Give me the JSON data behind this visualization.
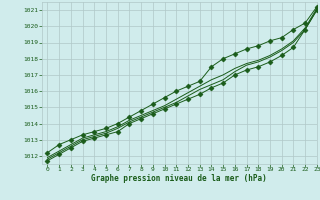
{
  "bg_color": "#d0ecec",
  "grid_color": "#b0c8c8",
  "line_color": "#1a5c1a",
  "marker_color": "#1a5c1a",
  "xlabel": "Graphe pression niveau de la mer (hPa)",
  "xlabel_color": "#1a5c1a",
  "ylabel_color": "#1a5c1a",
  "xlim": [
    -0.5,
    23
  ],
  "ylim": [
    1011.5,
    1021.5
  ],
  "yticks": [
    1012,
    1013,
    1014,
    1015,
    1016,
    1017,
    1018,
    1019,
    1020,
    1021
  ],
  "xticks": [
    0,
    1,
    2,
    3,
    4,
    5,
    6,
    7,
    8,
    9,
    10,
    11,
    12,
    13,
    14,
    15,
    16,
    17,
    18,
    19,
    20,
    21,
    22,
    23
  ],
  "series": [
    [
      1011.7,
      1012.1,
      1012.5,
      1012.9,
      1013.1,
      1013.3,
      1013.5,
      1014.0,
      1014.3,
      1014.6,
      1014.9,
      1015.2,
      1015.5,
      1015.8,
      1016.2,
      1016.5,
      1017.0,
      1017.3,
      1017.5,
      1017.8,
      1018.2,
      1018.7,
      1019.8,
      1021.0
    ],
    [
      1011.8,
      1012.2,
      1012.6,
      1013.0,
      1013.2,
      1013.4,
      1013.7,
      1014.1,
      1014.4,
      1014.7,
      1015.0,
      1015.3,
      1015.7,
      1016.1,
      1016.4,
      1016.7,
      1017.2,
      1017.6,
      1017.8,
      1018.1,
      1018.5,
      1019.0,
      1019.8,
      1021.0
    ],
    [
      1011.9,
      1012.3,
      1012.7,
      1013.1,
      1013.3,
      1013.5,
      1013.8,
      1014.2,
      1014.5,
      1014.8,
      1015.1,
      1015.5,
      1015.9,
      1016.3,
      1016.7,
      1017.0,
      1017.4,
      1017.7,
      1017.9,
      1018.2,
      1018.6,
      1019.1,
      1019.9,
      1021.1
    ],
    [
      1012.2,
      1012.7,
      1013.0,
      1013.3,
      1013.5,
      1013.7,
      1014.0,
      1014.4,
      1014.8,
      1015.2,
      1015.6,
      1016.0,
      1016.3,
      1016.6,
      1017.5,
      1018.0,
      1018.3,
      1018.6,
      1018.8,
      1019.1,
      1019.3,
      1019.8,
      1020.2,
      1021.2
    ]
  ],
  "marker_series": [
    0,
    3
  ],
  "marker_style": "D",
  "marker_size": 2.5,
  "linewidth": 0.7
}
